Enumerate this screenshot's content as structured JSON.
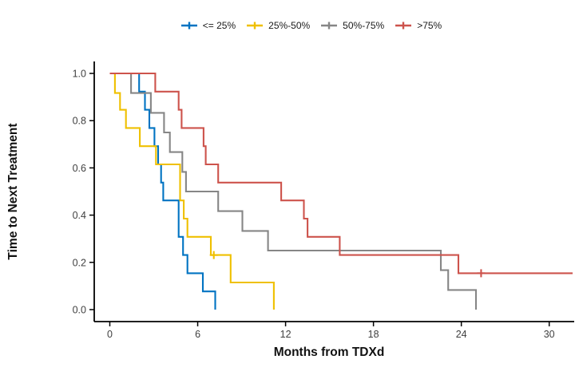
{
  "chart_data": {
    "type": "line",
    "variant": "kaplan-meier-step-survival",
    "title": "",
    "xlabel": "Months from TDXd",
    "ylabel": "Time to Next Treatment",
    "xlim": [
      0,
      31.6
    ],
    "ylim": [
      0,
      1
    ],
    "x_tick_labels": [
      "0",
      "6",
      "12",
      "18",
      "24",
      "30"
    ],
    "y_tick_labels": [
      "0.0",
      "0.2",
      "0.4",
      "0.6",
      "0.8",
      "1.0"
    ],
    "grid": false,
    "legend_position": "top-center",
    "censor_marker": "plus",
    "axis_color": "#000000",
    "tick_label_color": "#404040",
    "series": [
      {
        "key": "le25",
        "name": "<= 25%",
        "color": "#0073C2",
        "steps": [
          [
            0,
            1
          ],
          [
            2.0,
            1
          ],
          [
            2.0,
            0.923
          ],
          [
            2.4,
            0.923
          ],
          [
            2.4,
            0.846
          ],
          [
            2.7,
            0.846
          ],
          [
            2.7,
            0.769
          ],
          [
            3.05,
            0.769
          ],
          [
            3.05,
            0.692
          ],
          [
            3.3,
            0.692
          ],
          [
            3.3,
            0.615
          ],
          [
            3.5,
            0.615
          ],
          [
            3.5,
            0.538
          ],
          [
            3.65,
            0.538
          ],
          [
            3.65,
            0.462
          ],
          [
            4.7,
            0.462
          ],
          [
            4.7,
            0.308
          ],
          [
            5.0,
            0.308
          ],
          [
            5.0,
            0.231
          ],
          [
            5.3,
            0.231
          ],
          [
            5.3,
            0.154
          ],
          [
            6.35,
            0.154
          ],
          [
            6.35,
            0.077
          ],
          [
            7.2,
            0.077
          ],
          [
            7.2,
            0
          ]
        ],
        "censors": []
      },
      {
        "key": "q25-50",
        "name": "25%-50%",
        "color": "#EFC000",
        "steps": [
          [
            0,
            1
          ],
          [
            0.35,
            1
          ],
          [
            0.35,
            0.917
          ],
          [
            0.7,
            0.917
          ],
          [
            0.7,
            0.846
          ],
          [
            1.1,
            0.846
          ],
          [
            1.1,
            0.769
          ],
          [
            2.05,
            0.769
          ],
          [
            2.05,
            0.692
          ],
          [
            3.15,
            0.692
          ],
          [
            3.15,
            0.615
          ],
          [
            4.8,
            0.615
          ],
          [
            4.8,
            0.462
          ],
          [
            5.05,
            0.462
          ],
          [
            5.05,
            0.385
          ],
          [
            5.3,
            0.385
          ],
          [
            5.3,
            0.308
          ],
          [
            6.9,
            0.308
          ],
          [
            6.9,
            0.231
          ],
          [
            8.25,
            0.231
          ],
          [
            8.25,
            0.115
          ],
          [
            11.2,
            0.115
          ],
          [
            11.2,
            0
          ]
        ],
        "censors": [
          [
            7.1,
            0.231
          ]
        ]
      },
      {
        "key": "q50-75",
        "name": "50%-75%",
        "color": "#868686",
        "steps": [
          [
            0,
            1
          ],
          [
            1.45,
            1
          ],
          [
            1.45,
            0.917
          ],
          [
            2.8,
            0.917
          ],
          [
            2.8,
            0.833
          ],
          [
            3.7,
            0.833
          ],
          [
            3.7,
            0.75
          ],
          [
            4.1,
            0.75
          ],
          [
            4.1,
            0.667
          ],
          [
            4.95,
            0.667
          ],
          [
            4.95,
            0.583
          ],
          [
            5.2,
            0.583
          ],
          [
            5.2,
            0.5
          ],
          [
            7.4,
            0.5
          ],
          [
            7.4,
            0.417
          ],
          [
            9.05,
            0.417
          ],
          [
            9.05,
            0.333
          ],
          [
            10.8,
            0.333
          ],
          [
            10.8,
            0.25
          ],
          [
            22.6,
            0.25
          ],
          [
            22.6,
            0.167
          ],
          [
            23.1,
            0.167
          ],
          [
            23.1,
            0.083
          ],
          [
            25.0,
            0.083
          ],
          [
            25.0,
            0
          ]
        ],
        "censors": []
      },
      {
        "key": "gt75",
        "name": ">75%",
        "color": "#CD534C",
        "steps": [
          [
            0,
            1
          ],
          [
            3.1,
            1
          ],
          [
            3.1,
            0.923
          ],
          [
            4.7,
            0.923
          ],
          [
            4.7,
            0.846
          ],
          [
            4.9,
            0.846
          ],
          [
            4.9,
            0.769
          ],
          [
            6.4,
            0.769
          ],
          [
            6.4,
            0.692
          ],
          [
            6.55,
            0.692
          ],
          [
            6.55,
            0.615
          ],
          [
            7.4,
            0.615
          ],
          [
            7.4,
            0.538
          ],
          [
            11.7,
            0.538
          ],
          [
            11.7,
            0.462
          ],
          [
            13.25,
            0.462
          ],
          [
            13.25,
            0.385
          ],
          [
            13.5,
            0.385
          ],
          [
            13.5,
            0.308
          ],
          [
            15.7,
            0.308
          ],
          [
            15.7,
            0.231
          ],
          [
            23.8,
            0.231
          ],
          [
            23.8,
            0.154
          ],
          [
            31.6,
            0.154
          ]
        ],
        "censors": [
          [
            25.35,
            0.154
          ]
        ]
      }
    ]
  }
}
